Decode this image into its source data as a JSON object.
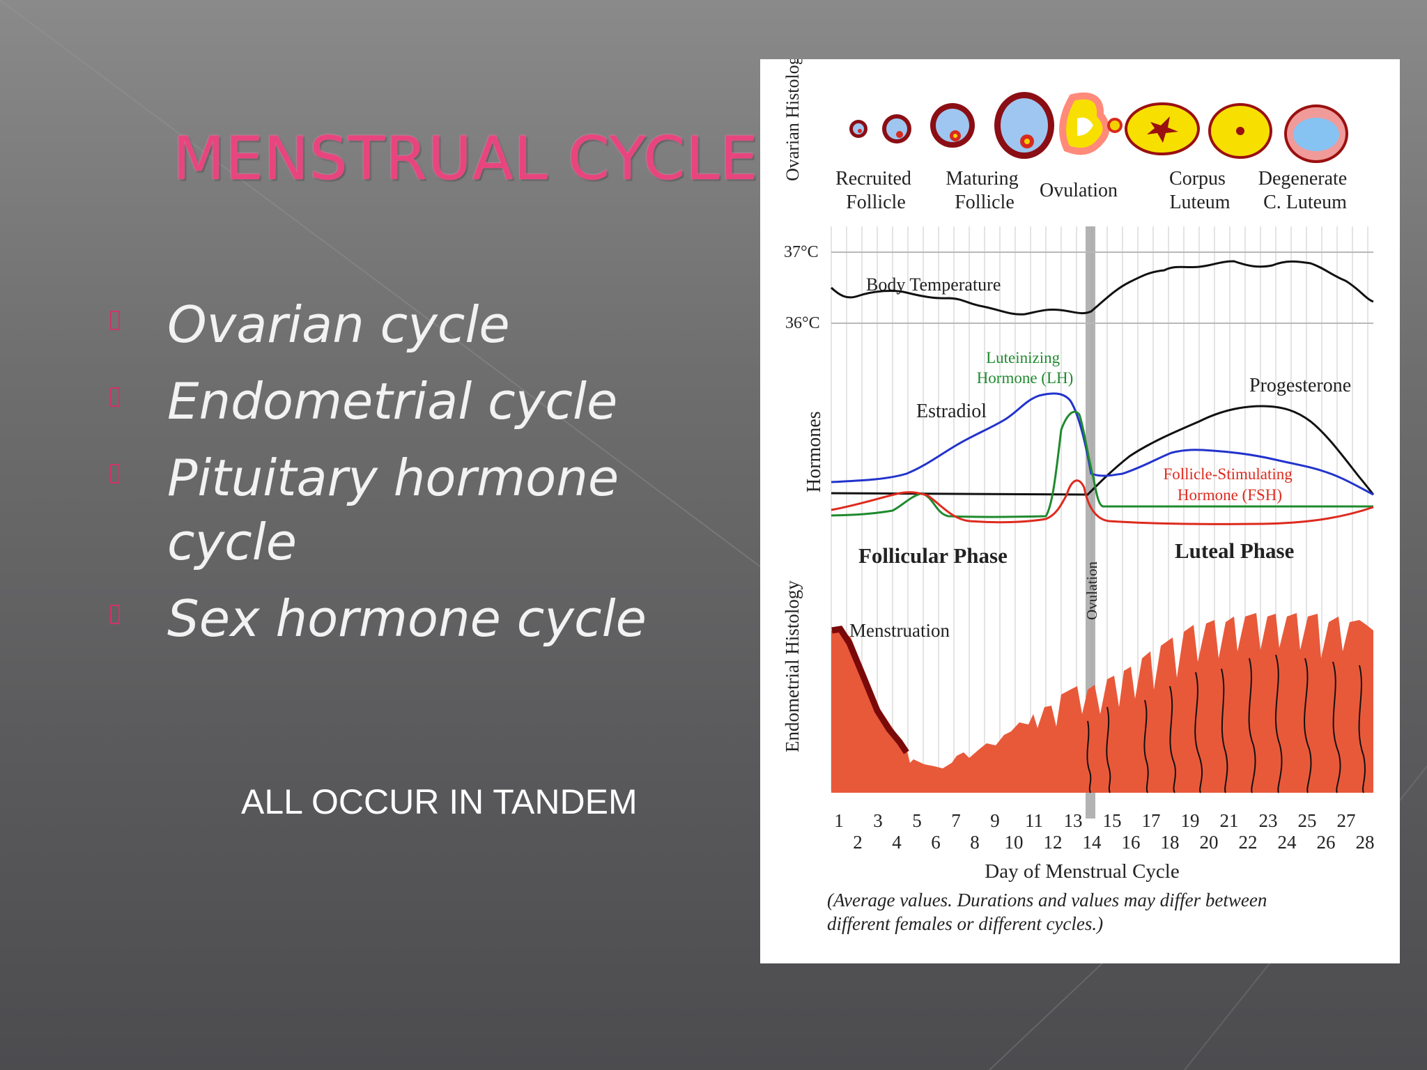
{
  "slide": {
    "title": "MENSTRUAL CYCLE",
    "bullets": [
      {
        "text": "Ovarian cycle"
      },
      {
        "text": "Endometrial cycle"
      },
      {
        "text": "Pituitary hormone cycle"
      },
      {
        "text": "Sex hormone cycle"
      }
    ],
    "footer_text": "ALL OCCUR IN TANDEM",
    "colors": {
      "title": "#e8457e",
      "bullet_mark": "#d0336a",
      "bullet_text": "#f2f2f2"
    }
  },
  "diagram": {
    "ovarian": {
      "section_label": "Ovarian Histology",
      "stages": [
        {
          "line1": "Recruited",
          "line2": "Follicle"
        },
        {
          "line1": "Maturing",
          "line2": "Follicle"
        },
        {
          "line1": "Ovulation",
          "line2": ""
        },
        {
          "line1": "Corpus",
          "line2": "Luteum"
        },
        {
          "line1": "Degenerate",
          "line2": "C. Luteum"
        }
      ]
    },
    "temperature": {
      "label": "Body Temperature",
      "high": "37°C",
      "low": "36°C"
    },
    "hormones": {
      "section_label": "Hormones",
      "lh_line1": "Luteinizing",
      "lh_line2": "Hormone (LH)",
      "estradiol": "Estradiol",
      "progesterone": "Progesterone",
      "fsh_line1": "Follicle-Stimulating",
      "fsh_line2": "Hormone (FSH)",
      "colors": {
        "lh": "#1f8a2e",
        "estradiol": "#2233cc",
        "progesterone": "#111111",
        "fsh": "#dd2a1e"
      }
    },
    "phases": {
      "follicular": "Follicular Phase",
      "luteal": "Luteal Phase",
      "ovulation": "Ovulation"
    },
    "endometrial": {
      "section_label": "Endometrial Histology",
      "menstruation": "Menstruation",
      "color": "#e8593a"
    },
    "axis": {
      "days_odd": [
        "1",
        "3",
        "5",
        "7",
        "9",
        "11",
        "13",
        "15",
        "17",
        "19",
        "21",
        "23",
        "25",
        "27"
      ],
      "days_even": [
        "2",
        "4",
        "6",
        "8",
        "10",
        "12",
        "14",
        "16",
        "18",
        "20",
        "22",
        "24",
        "26",
        "28"
      ],
      "label": "Day of Menstrual Cycle"
    },
    "note_line1": "(Average values. Durations and values may differ between",
    "note_line2": "different females or different cycles.)"
  }
}
